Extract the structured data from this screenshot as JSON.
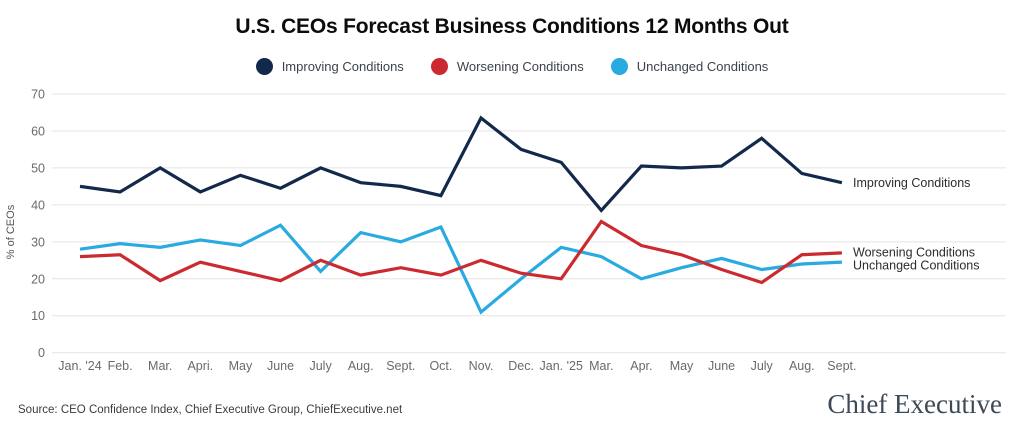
{
  "title": "U.S. CEOs Forecast Business Conditions 12 Months Out",
  "legend": [
    {
      "label": "Improving Conditions",
      "color": "#13294b"
    },
    {
      "label": "Worsening Conditions",
      "color": "#cb2a30"
    },
    {
      "label": "Unchanged Conditions",
      "color": "#29aae1"
    }
  ],
  "chart_data": {
    "type": "line",
    "title": "U.S. CEOs Forecast Business Conditions 12 Months Out",
    "categories": [
      "Jan. '24",
      "Feb.",
      "Mar.",
      "Apri.",
      "May",
      "June",
      "July",
      "Aug.",
      "Sept.",
      "Oct.",
      "Nov.",
      "Dec.",
      "Jan. '25",
      "Mar.",
      "Apr.",
      "May",
      "June",
      "July",
      "Aug.",
      "Sept."
    ],
    "series": [
      {
        "name": "Improving Conditions",
        "color": "#13294b",
        "values": [
          45,
          43.5,
          50,
          43.5,
          48,
          44.5,
          50,
          46,
          45,
          42.5,
          63.5,
          55,
          51.5,
          38.5,
          50.5,
          50,
          50.5,
          58,
          48.5,
          46
        ]
      },
      {
        "name": "Worsening Conditions",
        "color": "#cb2a30",
        "values": [
          26,
          26.5,
          19.5,
          24.5,
          22,
          19.5,
          25,
          21,
          23,
          21,
          25,
          21.5,
          20,
          35.5,
          29,
          26.5,
          22.5,
          19,
          26.5,
          27
        ]
      },
      {
        "name": "Unchanged Conditions",
        "color": "#29aae1",
        "values": [
          28,
          29.5,
          28.5,
          30.5,
          29,
          34.5,
          22,
          32.5,
          30,
          34,
          11,
          20,
          28.5,
          26,
          20,
          23,
          25.5,
          22.5,
          24,
          24.5
        ]
      }
    ],
    "xlabel": "",
    "ylabel": "% of CEOs",
    "ylim": [
      0,
      70
    ],
    "yticks": [
      0,
      10,
      20,
      30,
      40,
      50,
      60,
      70
    ],
    "grid": true,
    "legend_position": "top",
    "end_labels": true
  },
  "footer": {
    "source": "Source: CEO Confidence Index, Chief Executive Group, ChiefExecutive.net",
    "logo": "Chief Executive"
  }
}
